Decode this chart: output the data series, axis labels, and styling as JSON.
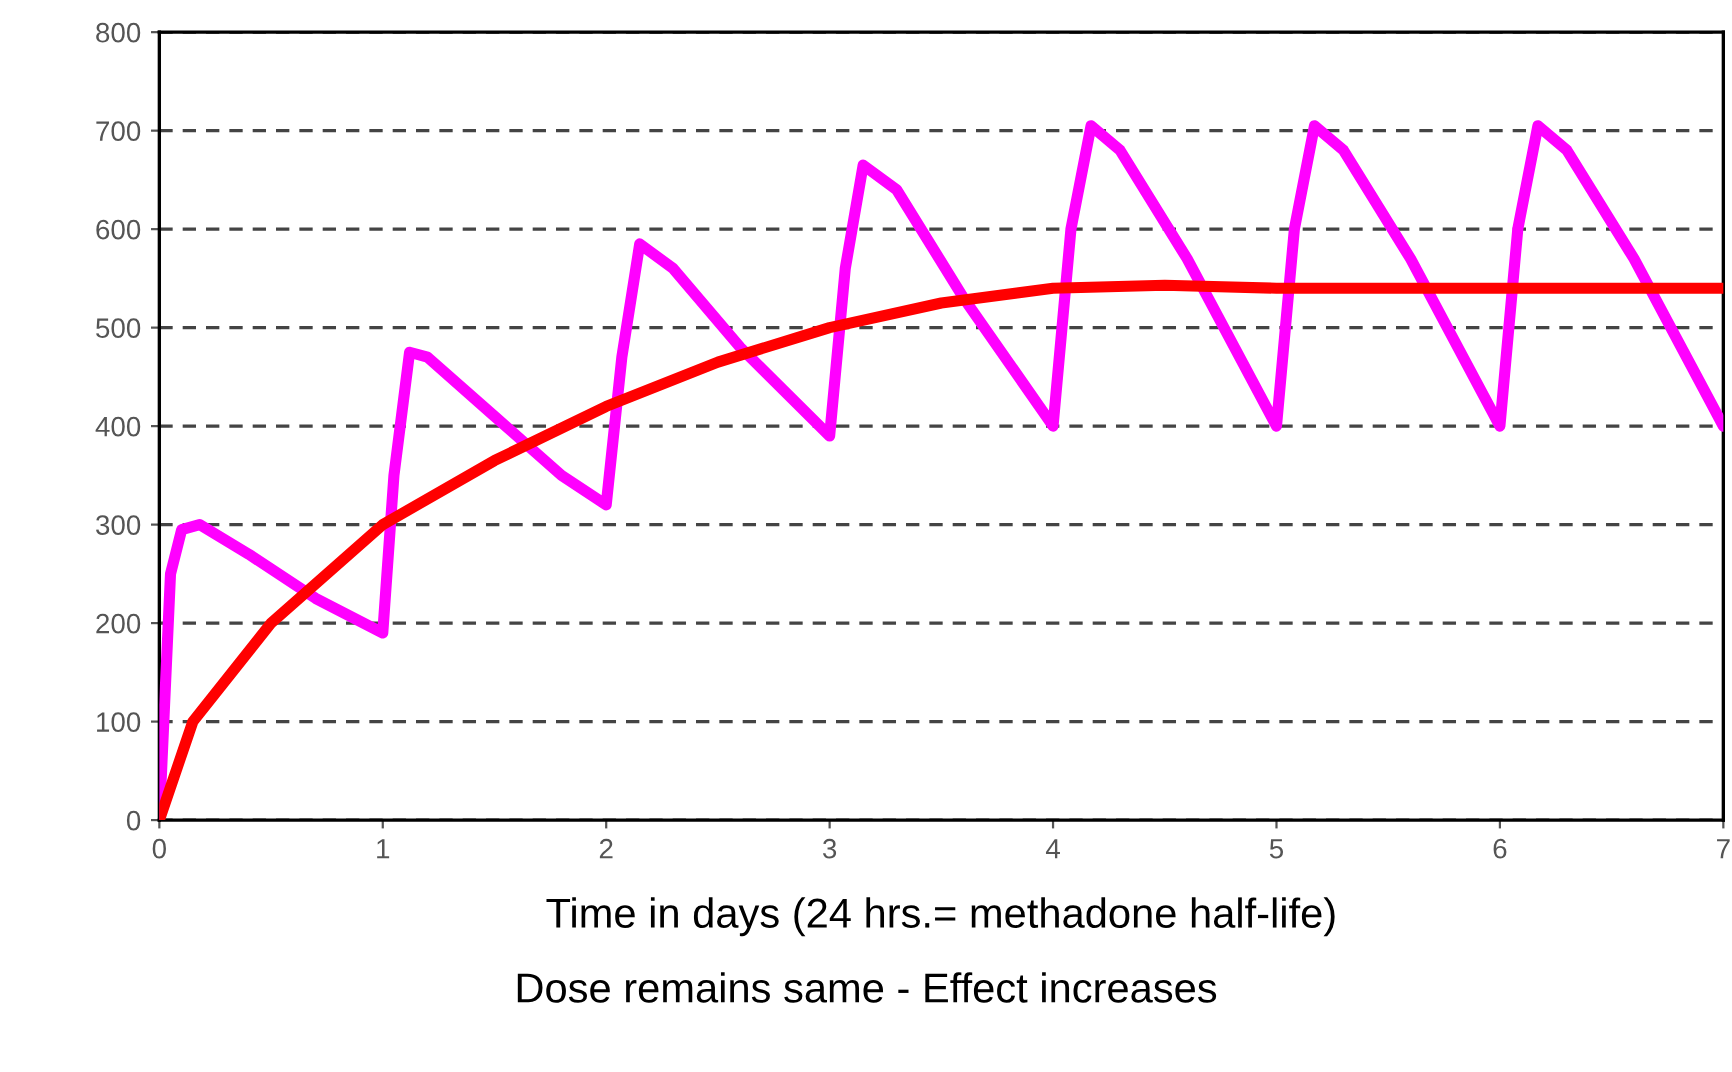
{
  "chart_data": {
    "type": "line",
    "xlabel": "Time in days (24 hrs.= methadone half-life)",
    "annotations": [
      "Dose remains same - Effect increases"
    ],
    "series": [
      {
        "color": "#ff00ff",
        "x": [
          0,
          0.05,
          0.1,
          0.18,
          0.4,
          0.7,
          1.0,
          1.05,
          1.12,
          1.2,
          1.5,
          1.8,
          2.0,
          2.07,
          2.15,
          2.3,
          2.6,
          3.0,
          3.07,
          3.15,
          3.3,
          3.6,
          4.0,
          4.08,
          4.17,
          4.3,
          4.6,
          5.0,
          5.08,
          5.17,
          5.3,
          5.6,
          6.0,
          6.08,
          6.17,
          6.3,
          6.6,
          7.0
        ],
        "values": [
          0,
          250,
          295,
          300,
          270,
          225,
          190,
          350,
          475,
          470,
          410,
          350,
          320,
          470,
          585,
          560,
          480,
          390,
          560,
          665,
          640,
          530,
          400,
          600,
          705,
          680,
          570,
          400,
          600,
          705,
          680,
          570,
          400,
          600,
          705,
          680,
          570,
          400
        ]
      },
      {
        "color": "#ff0000",
        "x": [
          0,
          0.15,
          0.5,
          1.0,
          1.5,
          2.0,
          2.5,
          3.0,
          3.5,
          4.0,
          4.5,
          5.0,
          6.0,
          7.0
        ],
        "values": [
          0,
          100,
          200,
          300,
          365,
          420,
          465,
          500,
          525,
          540,
          543,
          540,
          540,
          540
        ]
      }
    ],
    "xlim": [
      0,
      7
    ],
    "xticks": [
      0,
      1,
      2,
      3,
      4,
      5,
      6,
      7
    ],
    "ylim": [
      0,
      800
    ],
    "yticks": [
      0,
      100,
      200,
      300,
      400,
      500,
      600,
      700,
      800
    ],
    "grid": "y",
    "line_style": "solid"
  }
}
